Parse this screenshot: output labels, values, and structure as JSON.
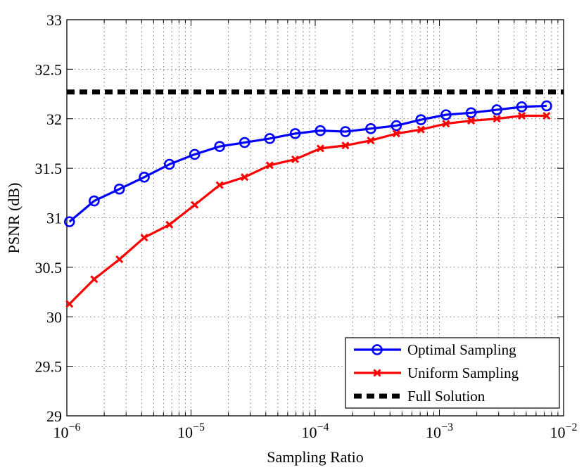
{
  "chart_data": {
    "type": "line",
    "title": "",
    "xlabel": "Sampling Ratio",
    "ylabel": "PSNR (dB)",
    "xscale": "log",
    "xlim": [
      1e-06,
      0.01
    ],
    "ylim": [
      29,
      33
    ],
    "grid": true,
    "legend_position": "bottom-right",
    "x_ticks": [
      {
        "value": 1e-06,
        "base": "10",
        "exp": "−6"
      },
      {
        "value": 1e-05,
        "base": "10",
        "exp": "−5"
      },
      {
        "value": 0.0001,
        "base": "10",
        "exp": "−4"
      },
      {
        "value": 0.001,
        "base": "10",
        "exp": "−3"
      },
      {
        "value": 0.01,
        "base": "10",
        "exp": "−2"
      }
    ],
    "y_ticks": [
      {
        "value": 29,
        "label": "29"
      },
      {
        "value": 29.5,
        "label": "29.5"
      },
      {
        "value": 30,
        "label": "30"
      },
      {
        "value": 30.5,
        "label": "30.5"
      },
      {
        "value": 31,
        "label": "31"
      },
      {
        "value": 31.5,
        "label": "31.5"
      },
      {
        "value": 32,
        "label": "32"
      },
      {
        "value": 32.5,
        "label": "32.5"
      },
      {
        "value": 33,
        "label": "33"
      }
    ],
    "x": [
      1.05e-06,
      1.66e-06,
      2.65e-06,
      4.2e-06,
      6.7e-06,
      1.07e-05,
      1.7e-05,
      2.7e-05,
      4.3e-05,
      6.9e-05,
      0.00011,
      0.000175,
      0.00028,
      0.00045,
      0.00071,
      0.00113,
      0.0018,
      0.0029,
      0.0046,
      0.0073
    ],
    "series": [
      {
        "name": "Optimal Sampling",
        "color": "#0000ff",
        "marker": "circle",
        "values": [
          30.96,
          31.17,
          31.29,
          31.41,
          31.54,
          31.64,
          31.72,
          31.76,
          31.8,
          31.85,
          31.88,
          31.87,
          31.9,
          31.93,
          31.99,
          32.04,
          32.06,
          32.09,
          32.12,
          32.13
        ]
      },
      {
        "name": "Uniform Sampling",
        "color": "#ff0000",
        "marker": "x",
        "values": [
          30.13,
          30.38,
          30.58,
          30.8,
          30.93,
          31.13,
          31.33,
          31.41,
          31.53,
          31.59,
          31.7,
          31.73,
          31.78,
          31.85,
          31.89,
          31.95,
          31.98,
          32.0,
          32.03,
          32.03
        ]
      },
      {
        "name": "Full Solution",
        "color": "#000000",
        "style": "dashed-thick",
        "constant": 32.27
      }
    ]
  }
}
